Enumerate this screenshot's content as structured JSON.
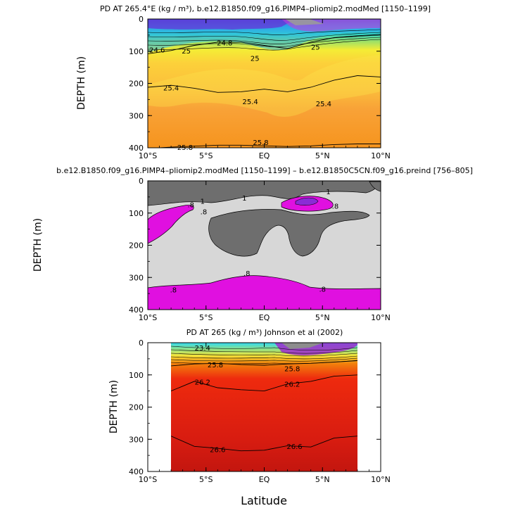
{
  "figure": {
    "shared_xlabel": "Latitude",
    "x_ticks": [
      "10°S",
      "5°S",
      "EQ",
      "5°N",
      "10°N"
    ],
    "y_ticks": [
      "0",
      "100",
      "200",
      "300",
      "400"
    ]
  },
  "chart_data": [
    {
      "type": "heatmap",
      "title": "PD AT 265.4°E (kg / m³), b.e12.B1850.f09_g16.PIMP4–pliomip2.modMed [1150–1199]",
      "xlabel": "",
      "ylabel": "DEPTH (m)",
      "xlim": [
        -10,
        10
      ],
      "ylim": [
        400,
        0
      ],
      "bands": [
        {
          "level": "<24.6",
          "color": "#6f2fd0"
        },
        {
          "level": "24.6",
          "color": "#2ab8e0"
        },
        {
          "level": "24.8",
          "color": "#7fe08a"
        },
        {
          "level": "25",
          "color": "#f6ef3a"
        },
        {
          "level": "25.2",
          "color": "#fcc83a"
        },
        {
          "level": "25.4",
          "color": "#f8a53a"
        },
        {
          "level": "25.8",
          "color": "#f59422"
        }
      ],
      "contours": [
        {
          "level": 25.0,
          "lat": [
            -10,
            -8,
            -6,
            -4,
            -2,
            0,
            2,
            4,
            6,
            8,
            10
          ],
          "depth": [
            108,
            98,
            82,
            72,
            72,
            82,
            92,
            72,
            58,
            52,
            48
          ]
        },
        {
          "level": 25.4,
          "lat": [
            -10,
            -8,
            -6,
            -4,
            -2,
            0,
            2,
            4,
            6,
            8,
            10
          ],
          "depth": [
            212,
            206,
            215,
            228,
            226,
            218,
            226,
            212,
            190,
            176,
            180
          ]
        },
        {
          "level": 25.8,
          "lat": [
            -10,
            -8,
            -6,
            -4,
            -2,
            0,
            2,
            4,
            6,
            8,
            10
          ],
          "depth": [
            402,
            398,
            395,
            392,
            392,
            394,
            396,
            394,
            390,
            388,
            388
          ]
        }
      ],
      "labels": [
        {
          "text": "24.6",
          "lat": -9.2,
          "depth": 97
        },
        {
          "text": "25",
          "lat": -6.7,
          "depth": 100
        },
        {
          "text": "25",
          "lat": -0.8,
          "depth": 123
        },
        {
          "text": "25",
          "lat": 4.4,
          "depth": 88
        },
        {
          "text": "25.4",
          "lat": -8.0,
          "depth": 215
        },
        {
          "text": "25.4",
          "lat": -1.2,
          "depth": 258
        },
        {
          "text": "25.4",
          "lat": 5.1,
          "depth": 265
        },
        {
          "text": "25.8",
          "lat": -6.8,
          "depth": 400
        },
        {
          "text": "25.8",
          "lat": -0.3,
          "depth": 385
        },
        {
          "text": "24.8",
          "lat": -3.4,
          "depth": 75
        }
      ]
    },
    {
      "type": "heatmap",
      "title": "b.e12.B1850.f09_g16.PIMP4–pliomip2.modMed [1150–1199] – b.e12.B1850C5CN.f09_g16.preind [756–805]",
      "xlabel": "",
      "ylabel": "DEPTH (m)",
      "xlim": [
        -10,
        10
      ],
      "ylim": [
        400,
        0
      ],
      "bands": [
        {
          "level": "<-.8",
          "color": "#e010e0"
        },
        {
          "level": "-.8 to 1",
          "color": "#d7d7d7"
        },
        {
          "level": ">1",
          "color": "#6e6e6e"
        }
      ],
      "labels": [
        {
          "text": ".8",
          "lat": -6.3,
          "depth": 75
        },
        {
          "text": "1",
          "lat": -5.3,
          "depth": 64
        },
        {
          "text": ".8",
          "lat": -5.2,
          "depth": 97
        },
        {
          "text": "1",
          "lat": -1.7,
          "depth": 55
        },
        {
          "text": "1",
          "lat": 5.5,
          "depth": 35
        },
        {
          "text": ".8",
          "lat": 6.1,
          "depth": 80
        },
        {
          "text": ".8",
          "lat": -7.8,
          "depth": 340
        },
        {
          "text": ".8",
          "lat": -1.5,
          "depth": 288
        },
        {
          "text": ".8",
          "lat": 5.0,
          "depth": 338
        }
      ]
    },
    {
      "type": "heatmap",
      "title": "PD AT 265 (kg / m³) Johnson et al (2002)",
      "xlabel": "Latitude",
      "ylabel": "DEPTH (m)",
      "xlim": [
        -10,
        10
      ],
      "ylim": [
        400,
        0
      ],
      "data_lat_range": [
        -8,
        8
      ],
      "bands": [
        {
          "level": "<23.4",
          "color": "#38d8ef"
        },
        {
          "level": "25.8",
          "color": "#f27a0c"
        },
        {
          "level": "26.2",
          "color": "#ee1f10"
        },
        {
          "level": "26.6",
          "color": "#d71a10"
        },
        {
          "level": ">26.6",
          "color": "#c3160f"
        }
      ],
      "contours": [
        {
          "level": 25.8,
          "lat": [
            -8,
            -6,
            -4,
            -2,
            0,
            2,
            4,
            6,
            8
          ],
          "depth": [
            72,
            66,
            64,
            68,
            70,
            66,
            64,
            60,
            56
          ]
        },
        {
          "level": 26.2,
          "lat": [
            -8,
            -6,
            -4,
            -2,
            0,
            2,
            4,
            6,
            8
          ],
          "depth": [
            150,
            120,
            140,
            146,
            150,
            128,
            120,
            104,
            100
          ]
        },
        {
          "level": 26.6,
          "lat": [
            -8,
            -6,
            -4,
            -2,
            0,
            2,
            4,
            6,
            8
          ],
          "depth": [
            290,
            322,
            328,
            336,
            334,
            320,
            324,
            296,
            290
          ]
        }
      ],
      "labels": [
        {
          "text": "23.4",
          "lat": -5.3,
          "depth": 18
        },
        {
          "text": "25.8",
          "lat": -4.2,
          "depth": 70
        },
        {
          "text": "25.8",
          "lat": 2.4,
          "depth": 82
        },
        {
          "text": "26.2",
          "lat": -5.3,
          "depth": 124
        },
        {
          "text": "26.2",
          "lat": 2.4,
          "depth": 130
        },
        {
          "text": "26.6",
          "lat": -4.0,
          "depth": 333
        },
        {
          "text": "26.6",
          "lat": 2.6,
          "depth": 324
        }
      ]
    }
  ]
}
